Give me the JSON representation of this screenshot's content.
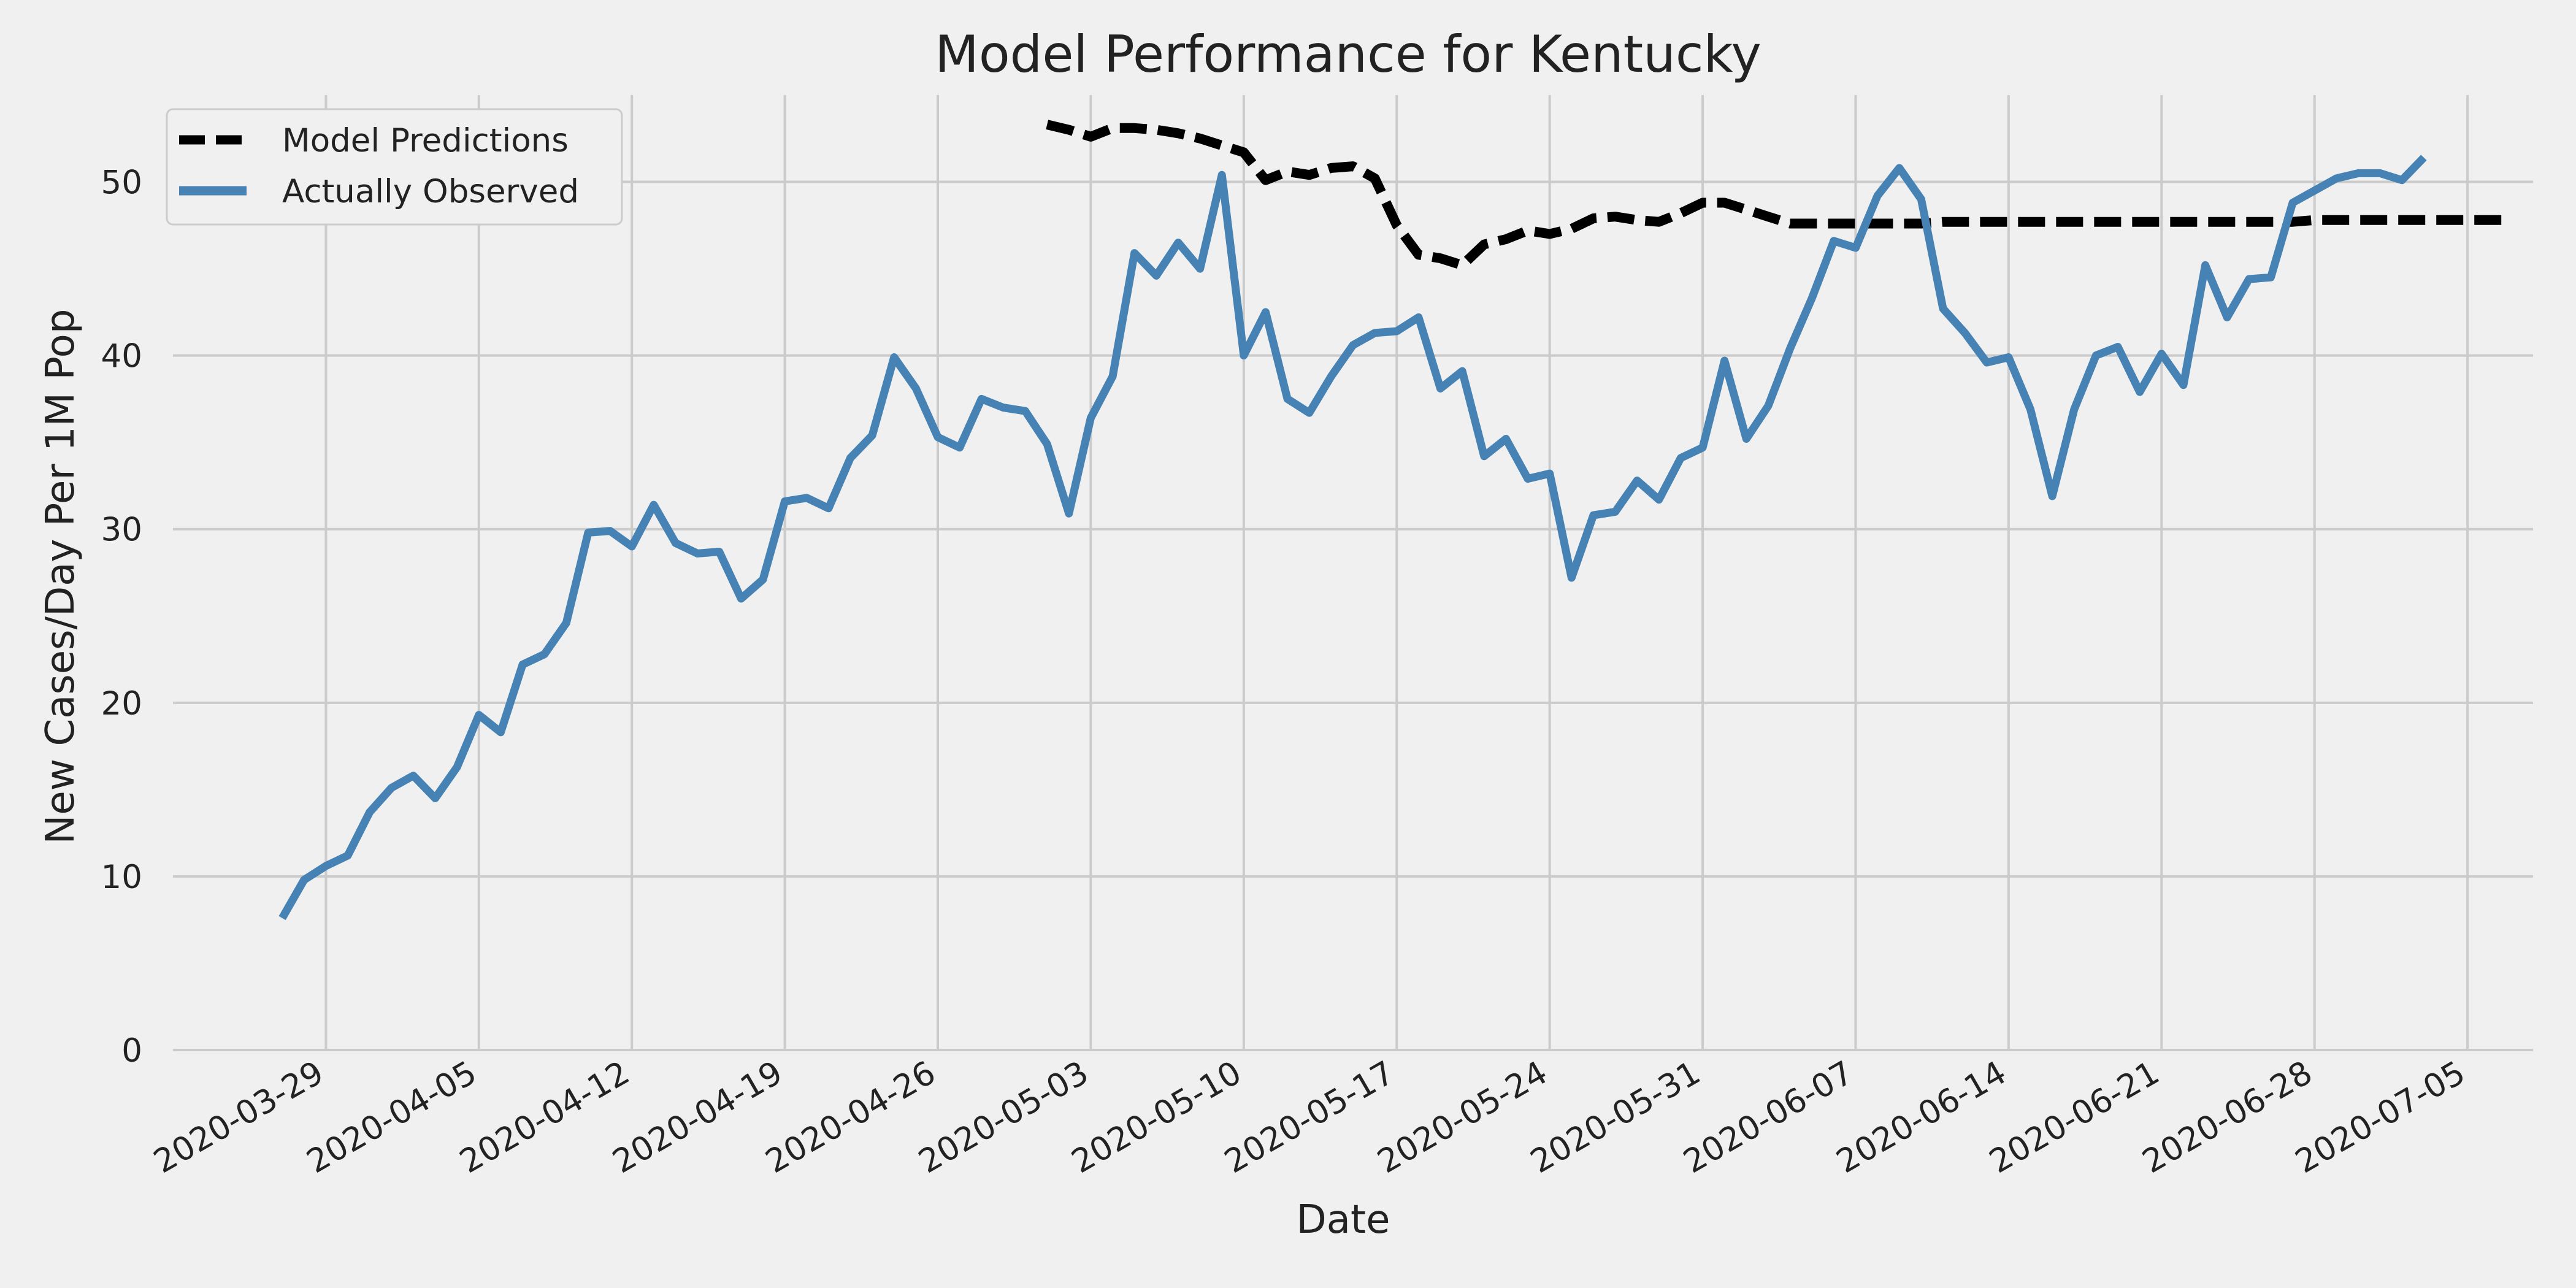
{
  "chart_data": {
    "type": "line",
    "title": "Model Performance for Kentucky",
    "xlabel": "Date",
    "ylabel": "New Cases/Day Per 1M Pop",
    "x_ticks": [
      "2020-03-29",
      "2020-04-05",
      "2020-04-12",
      "2020-04-19",
      "2020-04-26",
      "2020-05-03",
      "2020-05-10",
      "2020-05-17",
      "2020-05-24",
      "2020-05-31",
      "2020-06-07",
      "2020-06-14",
      "2020-06-21",
      "2020-06-28",
      "2020-07-05"
    ],
    "y_ticks": [
      "0",
      "10",
      "20",
      "30",
      "40",
      "50"
    ],
    "xlim": [
      "2020-03-22",
      "2020-07-08"
    ],
    "ylim": [
      0,
      55
    ],
    "grid": true,
    "legend_position": "top-left",
    "series": [
      {
        "name": "Model Predictions",
        "color": "#000000",
        "style": "dashed",
        "start_date": "2020-05-01",
        "values": [
          53.3,
          53.0,
          52.6,
          53.1,
          53.1,
          53.0,
          52.8,
          52.5,
          52.1,
          51.7,
          50.1,
          50.6,
          50.4,
          50.8,
          50.9,
          50.2,
          47.5,
          45.8,
          45.6,
          45.2,
          46.4,
          46.7,
          47.2,
          47.0,
          47.3,
          47.9,
          48.0,
          47.8,
          47.7,
          48.2,
          48.8,
          48.8,
          48.4,
          48.0,
          47.6,
          47.6,
          47.6,
          47.6,
          47.6,
          47.6,
          47.6,
          47.7,
          47.7,
          47.7,
          47.7,
          47.7,
          47.7,
          47.7,
          47.7,
          47.7,
          47.7,
          47.7,
          47.7,
          47.7,
          47.7,
          47.7,
          47.7,
          47.7,
          47.8,
          47.8,
          47.8,
          47.8,
          47.8,
          47.8,
          47.8,
          47.8,
          47.8,
          47.8
        ]
      },
      {
        "name": "Actually Observed",
        "color": "#4682b4",
        "style": "solid",
        "start_date": "2020-03-27",
        "values": [
          7.6,
          9.8,
          10.6,
          11.2,
          13.7,
          15.1,
          15.8,
          14.5,
          16.3,
          19.3,
          18.3,
          22.2,
          22.8,
          24.6,
          29.8,
          29.9,
          29.0,
          31.4,
          29.2,
          28.6,
          28.7,
          26.0,
          27.1,
          31.6,
          31.8,
          31.2,
          34.1,
          35.4,
          39.9,
          38.1,
          35.3,
          34.7,
          37.5,
          37.0,
          36.8,
          34.9,
          30.9,
          36.4,
          38.8,
          45.9,
          44.6,
          46.5,
          45.0,
          50.4,
          40.0,
          42.5,
          37.5,
          36.7,
          38.8,
          40.6,
          41.3,
          41.4,
          42.2,
          38.1,
          39.1,
          34.2,
          35.2,
          32.9,
          33.2,
          27.2,
          30.8,
          31.0,
          32.8,
          31.7,
          34.1,
          34.7,
          39.7,
          35.2,
          37.1,
          40.4,
          43.3,
          46.6,
          46.2,
          49.2,
          50.8,
          49.0,
          42.7,
          41.3,
          39.6,
          39.9,
          36.9,
          31.9,
          36.9,
          40.0,
          40.5,
          37.9,
          40.1,
          38.3,
          45.2,
          42.2,
          44.4,
          44.5,
          48.8,
          49.5,
          50.2,
          50.5,
          50.5,
          50.1,
          51.4
        ]
      }
    ]
  }
}
